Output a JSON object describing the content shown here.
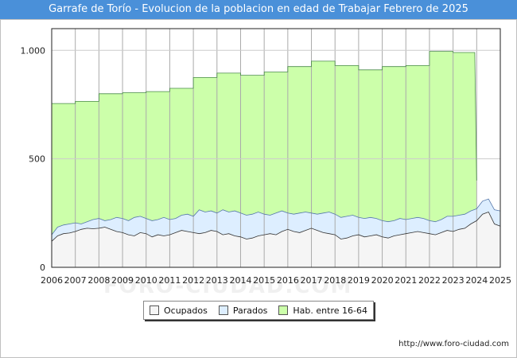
{
  "chart_data": {
    "type": "area",
    "title": "Garrafe de Torío - Evolucion de la poblacion en edad de Trabajar Febrero de 2025",
    "xlabel": "",
    "ylabel": "",
    "x_ticks": [
      "2006",
      "2007",
      "2008",
      "2009",
      "2010",
      "2011",
      "2012",
      "2013",
      "2014",
      "2015",
      "2016",
      "2017",
      "2018",
      "2019",
      "2020",
      "2021",
      "2022",
      "2023",
      "2024",
      "2025"
    ],
    "y_ticks": [
      {
        "value": 0,
        "label": "0"
      },
      {
        "value": 500,
        "label": "500"
      },
      {
        "value": 1000,
        "label": "1.000"
      }
    ],
    "xlim": [
      2006,
      2025
    ],
    "ylim": [
      0,
      1100
    ],
    "grid": true,
    "legend_position": "bottom",
    "series": [
      {
        "name": "Hab. entre 16-64",
        "color": "#ccffaa",
        "points": [
          [
            2006.0,
            755
          ],
          [
            2007.0,
            755
          ],
          [
            2007.0,
            765
          ],
          [
            2008.0,
            765
          ],
          [
            2008.0,
            800
          ],
          [
            2009.0,
            800
          ],
          [
            2009.0,
            805
          ],
          [
            2010.0,
            805
          ],
          [
            2010.0,
            810
          ],
          [
            2011.0,
            810
          ],
          [
            2011.0,
            825
          ],
          [
            2012.0,
            825
          ],
          [
            2012.0,
            875
          ],
          [
            2013.0,
            875
          ],
          [
            2013.0,
            895
          ],
          [
            2014.0,
            895
          ],
          [
            2014.0,
            885
          ],
          [
            2015.0,
            885
          ],
          [
            2015.0,
            900
          ],
          [
            2016.0,
            900
          ],
          [
            2016.0,
            925
          ],
          [
            2017.0,
            925
          ],
          [
            2017.0,
            950
          ],
          [
            2018.0,
            950
          ],
          [
            2018.0,
            930
          ],
          [
            2019.0,
            930
          ],
          [
            2019.0,
            910
          ],
          [
            2020.0,
            910
          ],
          [
            2020.0,
            925
          ],
          [
            2021.0,
            925
          ],
          [
            2021.0,
            930
          ],
          [
            2022.0,
            930
          ],
          [
            2022.0,
            995
          ],
          [
            2023.0,
            995
          ],
          [
            2023.0,
            990
          ],
          [
            2023.92,
            990
          ],
          [
            2024.0,
            400
          ]
        ]
      },
      {
        "name": "Parados",
        "color": "#ddeeff",
        "points": [
          [
            2006.0,
            150
          ],
          [
            2006.25,
            185
          ],
          [
            2006.5,
            195
          ],
          [
            2006.75,
            200
          ],
          [
            2007.0,
            205
          ],
          [
            2007.25,
            200
          ],
          [
            2007.5,
            210
          ],
          [
            2007.75,
            220
          ],
          [
            2008.0,
            225
          ],
          [
            2008.25,
            215
          ],
          [
            2008.5,
            220
          ],
          [
            2008.75,
            230
          ],
          [
            2009.0,
            225
          ],
          [
            2009.25,
            215
          ],
          [
            2009.5,
            230
          ],
          [
            2009.75,
            235
          ],
          [
            2010.0,
            225
          ],
          [
            2010.25,
            215
          ],
          [
            2010.5,
            220
          ],
          [
            2010.75,
            230
          ],
          [
            2011.0,
            220
          ],
          [
            2011.25,
            225
          ],
          [
            2011.5,
            240
          ],
          [
            2011.75,
            245
          ],
          [
            2012.0,
            235
          ],
          [
            2012.25,
            265
          ],
          [
            2012.5,
            255
          ],
          [
            2012.75,
            260
          ],
          [
            2013.0,
            250
          ],
          [
            2013.25,
            265
          ],
          [
            2013.5,
            255
          ],
          [
            2013.75,
            260
          ],
          [
            2014.0,
            250
          ],
          [
            2014.25,
            240
          ],
          [
            2014.5,
            245
          ],
          [
            2014.75,
            255
          ],
          [
            2015.0,
            245
          ],
          [
            2015.25,
            240
          ],
          [
            2015.5,
            250
          ],
          [
            2015.75,
            260
          ],
          [
            2016.0,
            250
          ],
          [
            2016.25,
            245
          ],
          [
            2016.5,
            250
          ],
          [
            2016.75,
            255
          ],
          [
            2017.0,
            250
          ],
          [
            2017.25,
            245
          ],
          [
            2017.5,
            250
          ],
          [
            2017.75,
            255
          ],
          [
            2018.0,
            245
          ],
          [
            2018.25,
            230
          ],
          [
            2018.5,
            235
          ],
          [
            2018.75,
            240
          ],
          [
            2019.0,
            230
          ],
          [
            2019.25,
            225
          ],
          [
            2019.5,
            230
          ],
          [
            2019.75,
            225
          ],
          [
            2020.0,
            215
          ],
          [
            2020.25,
            210
          ],
          [
            2020.5,
            215
          ],
          [
            2020.75,
            225
          ],
          [
            2021.0,
            220
          ],
          [
            2021.25,
            225
          ],
          [
            2021.5,
            230
          ],
          [
            2021.75,
            225
          ],
          [
            2022.0,
            215
          ],
          [
            2022.25,
            210
          ],
          [
            2022.5,
            220
          ],
          [
            2022.75,
            235
          ],
          [
            2023.0,
            235
          ],
          [
            2023.25,
            240
          ],
          [
            2023.5,
            245
          ],
          [
            2023.75,
            260
          ],
          [
            2024.0,
            270
          ],
          [
            2024.25,
            305
          ],
          [
            2024.5,
            315
          ],
          [
            2024.75,
            265
          ],
          [
            2025.0,
            260
          ]
        ]
      },
      {
        "name": "Ocupados",
        "color": "#f5f5f5",
        "points": [
          [
            2006.0,
            120
          ],
          [
            2006.25,
            145
          ],
          [
            2006.5,
            155
          ],
          [
            2006.75,
            158
          ],
          [
            2007.0,
            165
          ],
          [
            2007.25,
            175
          ],
          [
            2007.5,
            180
          ],
          [
            2007.75,
            178
          ],
          [
            2008.0,
            180
          ],
          [
            2008.25,
            185
          ],
          [
            2008.5,
            175
          ],
          [
            2008.75,
            165
          ],
          [
            2009.0,
            160
          ],
          [
            2009.25,
            150
          ],
          [
            2009.5,
            145
          ],
          [
            2009.75,
            160
          ],
          [
            2010.0,
            155
          ],
          [
            2010.25,
            140
          ],
          [
            2010.5,
            150
          ],
          [
            2010.75,
            145
          ],
          [
            2011.0,
            150
          ],
          [
            2011.25,
            160
          ],
          [
            2011.5,
            170
          ],
          [
            2011.75,
            165
          ],
          [
            2012.0,
            160
          ],
          [
            2012.25,
            155
          ],
          [
            2012.5,
            160
          ],
          [
            2012.75,
            170
          ],
          [
            2013.0,
            165
          ],
          [
            2013.25,
            150
          ],
          [
            2013.5,
            155
          ],
          [
            2013.75,
            145
          ],
          [
            2014.0,
            140
          ],
          [
            2014.25,
            130
          ],
          [
            2014.5,
            135
          ],
          [
            2014.75,
            145
          ],
          [
            2015.0,
            150
          ],
          [
            2015.25,
            155
          ],
          [
            2015.5,
            150
          ],
          [
            2015.75,
            165
          ],
          [
            2016.0,
            175
          ],
          [
            2016.25,
            165
          ],
          [
            2016.5,
            160
          ],
          [
            2016.75,
            170
          ],
          [
            2017.0,
            180
          ],
          [
            2017.25,
            170
          ],
          [
            2017.5,
            160
          ],
          [
            2017.75,
            155
          ],
          [
            2018.0,
            150
          ],
          [
            2018.25,
            130
          ],
          [
            2018.5,
            135
          ],
          [
            2018.75,
            145
          ],
          [
            2019.0,
            150
          ],
          [
            2019.25,
            140
          ],
          [
            2019.5,
            145
          ],
          [
            2019.75,
            150
          ],
          [
            2020.0,
            140
          ],
          [
            2020.25,
            135
          ],
          [
            2020.5,
            145
          ],
          [
            2020.75,
            150
          ],
          [
            2021.0,
            155
          ],
          [
            2021.25,
            160
          ],
          [
            2021.5,
            165
          ],
          [
            2021.75,
            160
          ],
          [
            2022.0,
            155
          ],
          [
            2022.25,
            150
          ],
          [
            2022.5,
            160
          ],
          [
            2022.75,
            170
          ],
          [
            2023.0,
            165
          ],
          [
            2023.25,
            175
          ],
          [
            2023.5,
            180
          ],
          [
            2023.75,
            200
          ],
          [
            2024.0,
            215
          ],
          [
            2024.25,
            245
          ],
          [
            2024.5,
            255
          ],
          [
            2024.75,
            200
          ],
          [
            2025.0,
            190
          ]
        ]
      }
    ]
  },
  "legend": [
    {
      "label": "Ocupados",
      "color": "#f5f5f5"
    },
    {
      "label": "Parados",
      "color": "#ddeeff"
    },
    {
      "label": "Hab. entre 16-64",
      "color": "#ccffaa"
    }
  ],
  "watermark": "FORO-CIUDAD.COM",
  "source": "http://www.foro-ciudad.com"
}
